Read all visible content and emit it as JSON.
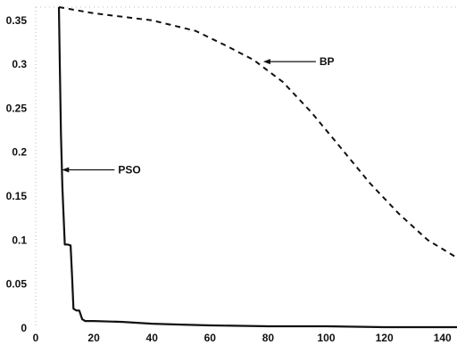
{
  "chart_data": {
    "type": "line",
    "title": "",
    "xlabel": "",
    "ylabel": "",
    "xlim": [
      0,
      145
    ],
    "ylim": [
      0,
      0.365
    ],
    "grid": false,
    "x_ticks": [
      "0",
      "20",
      "40",
      "60",
      "80",
      "100",
      "120",
      "140"
    ],
    "y_ticks": [
      "0",
      "0.05",
      "0.1",
      "0.15",
      "0.2",
      "0.25",
      "0.3",
      "0.35"
    ],
    "series": [
      {
        "name": "BP",
        "style": "dashed",
        "color": "#111111",
        "x": [
          8,
          20,
          40,
          55,
          65,
          75,
          85,
          95,
          105,
          115,
          125,
          135,
          145
        ],
        "y": [
          0.365,
          0.358,
          0.35,
          0.338,
          0.322,
          0.305,
          0.28,
          0.245,
          0.205,
          0.165,
          0.13,
          0.1,
          0.08
        ]
      },
      {
        "name": "PSO",
        "style": "solid",
        "color": "#111111",
        "x": [
          8,
          8.3,
          8.7,
          9.2,
          10,
          11,
          12,
          12.5,
          13,
          14,
          15,
          16,
          17,
          20,
          30,
          40,
          50,
          60,
          80,
          100,
          120,
          145
        ],
        "y": [
          0.365,
          0.3,
          0.22,
          0.16,
          0.095,
          0.095,
          0.094,
          0.06,
          0.022,
          0.02,
          0.02,
          0.01,
          0.008,
          0.008,
          0.007,
          0.005,
          0.004,
          0.003,
          0.002,
          0.002,
          0.001,
          0.001
        ]
      }
    ],
    "annotations": [
      {
        "text": "BP",
        "x": 78,
        "y": 0.303
      },
      {
        "text": "PSO",
        "x": 8.7,
        "y": 0.18
      }
    ]
  }
}
